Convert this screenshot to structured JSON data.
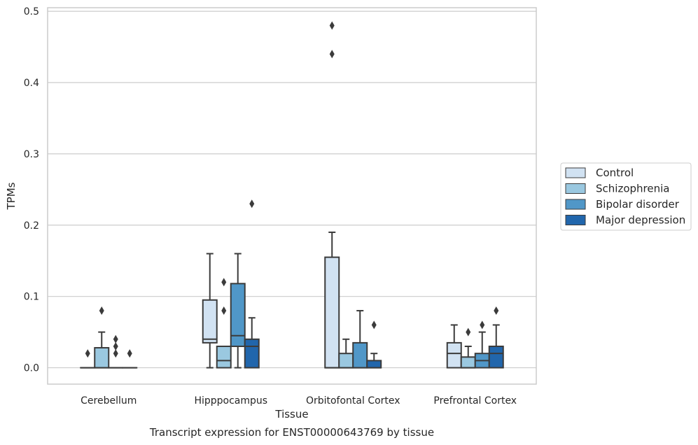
{
  "chart_data": {
    "type": "box",
    "title": "Transcript expression for ENST00000643769 by tissue",
    "xlabel": "Tissue",
    "ylabel": "TPMs",
    "ylim": [
      -0.023,
      0.505
    ],
    "yticks": [
      0.0,
      0.1,
      0.2,
      0.3,
      0.4,
      0.5
    ],
    "ytick_labels": [
      "0.0",
      "0.1",
      "0.2",
      "0.3",
      "0.4",
      "0.5"
    ],
    "categories": [
      "Cerebellum",
      "Hipppocampus",
      "Orbitofontal Cortex",
      "Prefrontal Cortex"
    ],
    "grid": "horizontal",
    "legend_position": "right",
    "series": [
      {
        "name": "Control",
        "color": "#d1e2f2",
        "boxes": [
          {
            "q1": 0.0,
            "median": 0.0,
            "q3": 0.0,
            "whisker_low": 0.0,
            "whisker_high": 0.0,
            "outliers": [
              0.02
            ]
          },
          {
            "q1": 0.035,
            "median": 0.04,
            "q3": 0.095,
            "whisker_low": 0.0,
            "whisker_high": 0.16,
            "outliers": []
          },
          {
            "q1": 0.0,
            "median": 0.0,
            "q3": 0.155,
            "whisker_low": 0.0,
            "whisker_high": 0.19,
            "outliers": [
              0.44,
              0.48
            ]
          },
          {
            "q1": 0.0,
            "median": 0.02,
            "q3": 0.035,
            "whisker_low": 0.0,
            "whisker_high": 0.06,
            "outliers": []
          }
        ]
      },
      {
        "name": "Schizophrenia",
        "color": "#9ac8e0",
        "boxes": [
          {
            "q1": 0.0,
            "median": 0.0,
            "q3": 0.028,
            "whisker_low": 0.0,
            "whisker_high": 0.05,
            "outliers": [
              0.08
            ]
          },
          {
            "q1": 0.0,
            "median": 0.01,
            "q3": 0.03,
            "whisker_low": 0.0,
            "whisker_high": 0.03,
            "outliers": [
              0.08,
              0.12
            ]
          },
          {
            "q1": 0.0,
            "median": 0.0,
            "q3": 0.02,
            "whisker_low": 0.0,
            "whisker_high": 0.04,
            "outliers": []
          },
          {
            "q1": 0.0,
            "median": 0.0,
            "q3": 0.015,
            "whisker_low": 0.0,
            "whisker_high": 0.03,
            "outliers": [
              0.05
            ]
          }
        ]
      },
      {
        "name": "Bipolar disorder",
        "color": "#5097c8",
        "boxes": [
          {
            "q1": 0.0,
            "median": 0.0,
            "q3": 0.0,
            "whisker_low": 0.0,
            "whisker_high": 0.0,
            "outliers": [
              0.02,
              0.03,
              0.04
            ]
          },
          {
            "q1": 0.03,
            "median": 0.045,
            "q3": 0.118,
            "whisker_low": 0.0,
            "whisker_high": 0.16,
            "outliers": []
          },
          {
            "q1": 0.0,
            "median": 0.0,
            "q3": 0.035,
            "whisker_low": 0.0,
            "whisker_high": 0.08,
            "outliers": []
          },
          {
            "q1": 0.0,
            "median": 0.01,
            "q3": 0.02,
            "whisker_low": 0.0,
            "whisker_high": 0.05,
            "outliers": [
              0.06
            ]
          }
        ]
      },
      {
        "name": "Major depression",
        "color": "#2166ac",
        "boxes": [
          {
            "q1": 0.0,
            "median": 0.0,
            "q3": 0.0,
            "whisker_low": 0.0,
            "whisker_high": 0.0,
            "outliers": [
              0.02
            ]
          },
          {
            "q1": 0.0,
            "median": 0.03,
            "q3": 0.04,
            "whisker_low": 0.0,
            "whisker_high": 0.07,
            "outliers": [
              0.23
            ]
          },
          {
            "q1": 0.0,
            "median": 0.0,
            "q3": 0.01,
            "whisker_low": 0.0,
            "whisker_high": 0.02,
            "outliers": [
              0.06
            ]
          },
          {
            "q1": 0.0,
            "median": 0.02,
            "q3": 0.03,
            "whisker_low": 0.0,
            "whisker_high": 0.06,
            "outliers": [
              0.08
            ]
          }
        ]
      }
    ]
  }
}
